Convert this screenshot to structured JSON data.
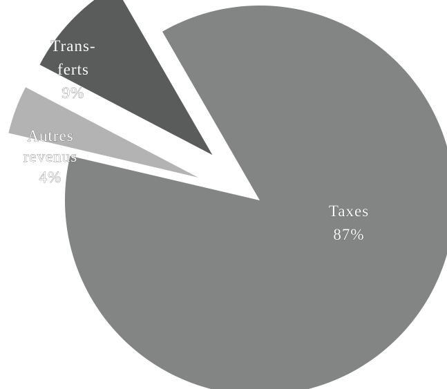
{
  "chart_data": {
    "type": "pie",
    "title": "",
    "slices": [
      {
        "name": "Taxes",
        "label_lines": [
          "Taxes",
          "87%"
        ],
        "value": 87,
        "color": "#828583",
        "exploded": false
      },
      {
        "name": "Autres revenus",
        "label_lines": [
          "Autres",
          "revenus",
          "4%"
        ],
        "value": 4,
        "color": "#b3b3b3",
        "exploded": true
      },
      {
        "name": "Transferts",
        "label_lines": [
          "Trans-",
          "ferts",
          "9%"
        ],
        "value": 9,
        "color": "#595c5a",
        "exploded": true
      }
    ],
    "legend": "none"
  }
}
